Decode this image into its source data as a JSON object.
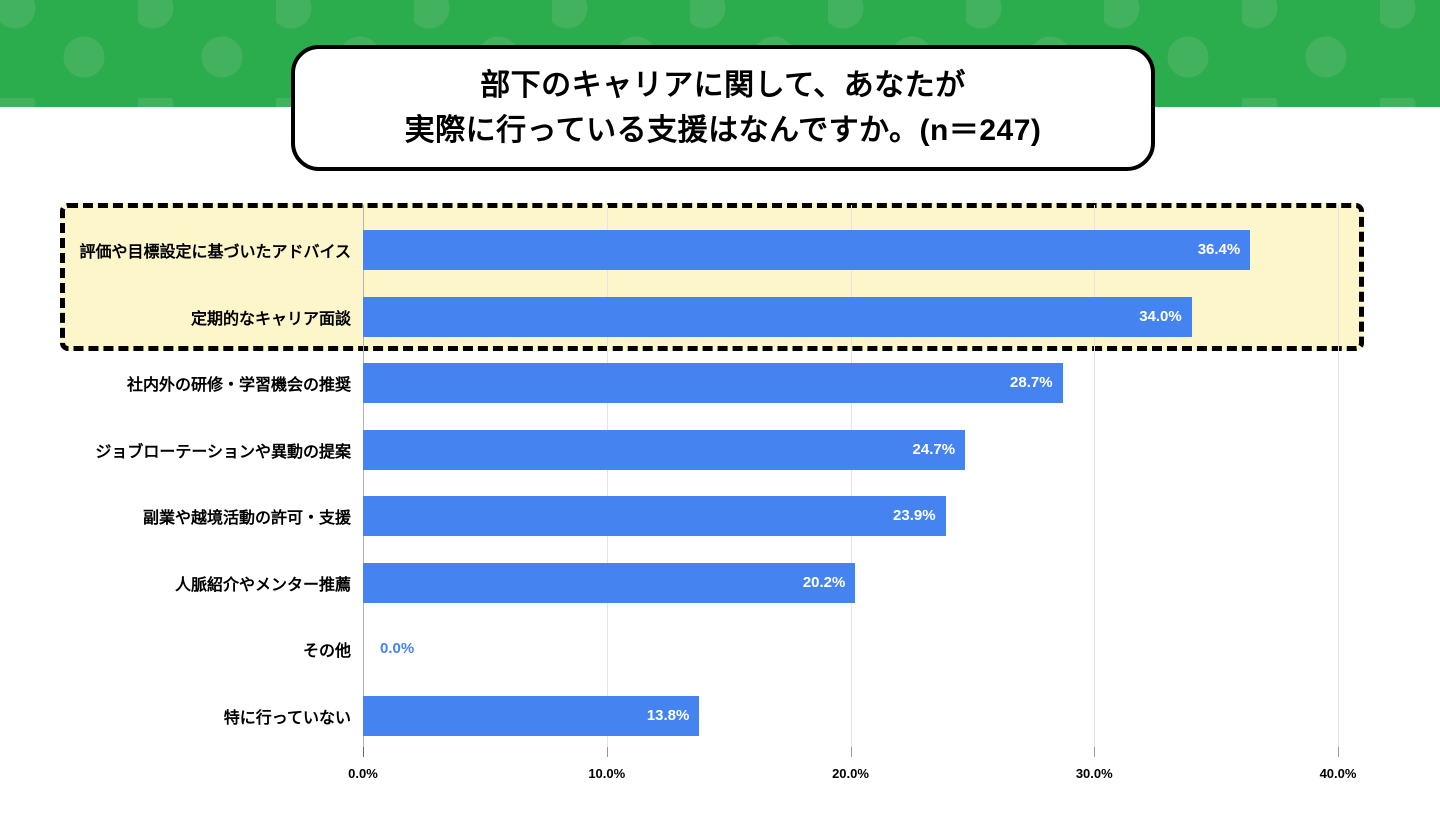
{
  "header": {
    "band_color": "#2BAC4D",
    "dot_color": "#42B25F",
    "title_line1": "部下のキャリアに関して、あなたが",
    "title_line2": "実際に行っている支援はなんですか。(n＝247)"
  },
  "chart_data": {
    "type": "bar",
    "orientation": "horizontal",
    "title": "部下のキャリアに関して、あなたが実際に行っている支援はなんですか。(n＝247)",
    "n": 247,
    "categories": [
      "評価や目標設定に基づいたアドバイス",
      "定期的なキャリア面談",
      "社内外の研修・学習機会の推奨",
      "ジョブローテーションや異動の提案",
      "副業や越境活動の許可・支援",
      "人脈紹介やメンター推薦",
      "その他",
      "特に行っていない"
    ],
    "values": [
      36.4,
      34.0,
      28.7,
      24.7,
      23.9,
      20.2,
      0.0,
      13.8
    ],
    "value_labels": [
      "36.4%",
      "34.0%",
      "28.7%",
      "24.7%",
      "23.9%",
      "20.2%",
      "0.0%",
      "13.8%"
    ],
    "x_ticks": [
      {
        "value": 0,
        "label": "0.0%"
      },
      {
        "value": 10,
        "label": "10.0%"
      },
      {
        "value": 20,
        "label": "20.0%"
      },
      {
        "value": 30,
        "label": "30.0%"
      },
      {
        "value": 40,
        "label": "40.0%"
      }
    ],
    "xlim": [
      0,
      40
    ],
    "grid": true,
    "legend": "none",
    "bar_color": "#4584F0",
    "zero_value_label_color": "#4584F0",
    "highlight": {
      "rows": [
        0,
        1
      ],
      "fill": "#FCF6CA",
      "border_style": "dashed",
      "border_color": "#000000"
    }
  }
}
